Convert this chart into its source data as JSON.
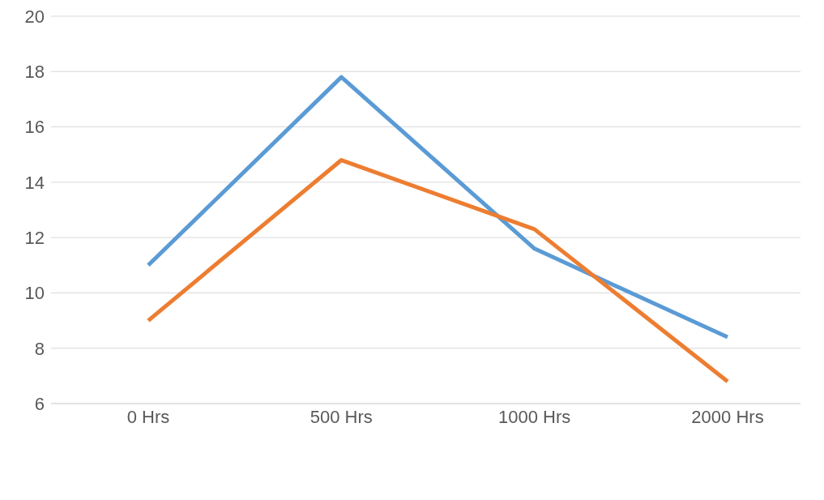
{
  "chart_data": {
    "type": "line",
    "categories": [
      "0 Hrs",
      "500 Hrs",
      "1000 Hrs",
      "2000 Hrs"
    ],
    "series": [
      {
        "color": "#5b9bd5",
        "values": [
          11,
          17.8,
          11.6,
          8.4
        ]
      },
      {
        "color": "#ed7d31",
        "values": [
          9,
          14.8,
          12.3,
          6.8
        ]
      }
    ],
    "ylim": [
      6,
      20
    ],
    "yticks": [
      6,
      8,
      10,
      12,
      14,
      16,
      18,
      20
    ],
    "grid": "y",
    "marker": "none",
    "line_style": "solid"
  }
}
